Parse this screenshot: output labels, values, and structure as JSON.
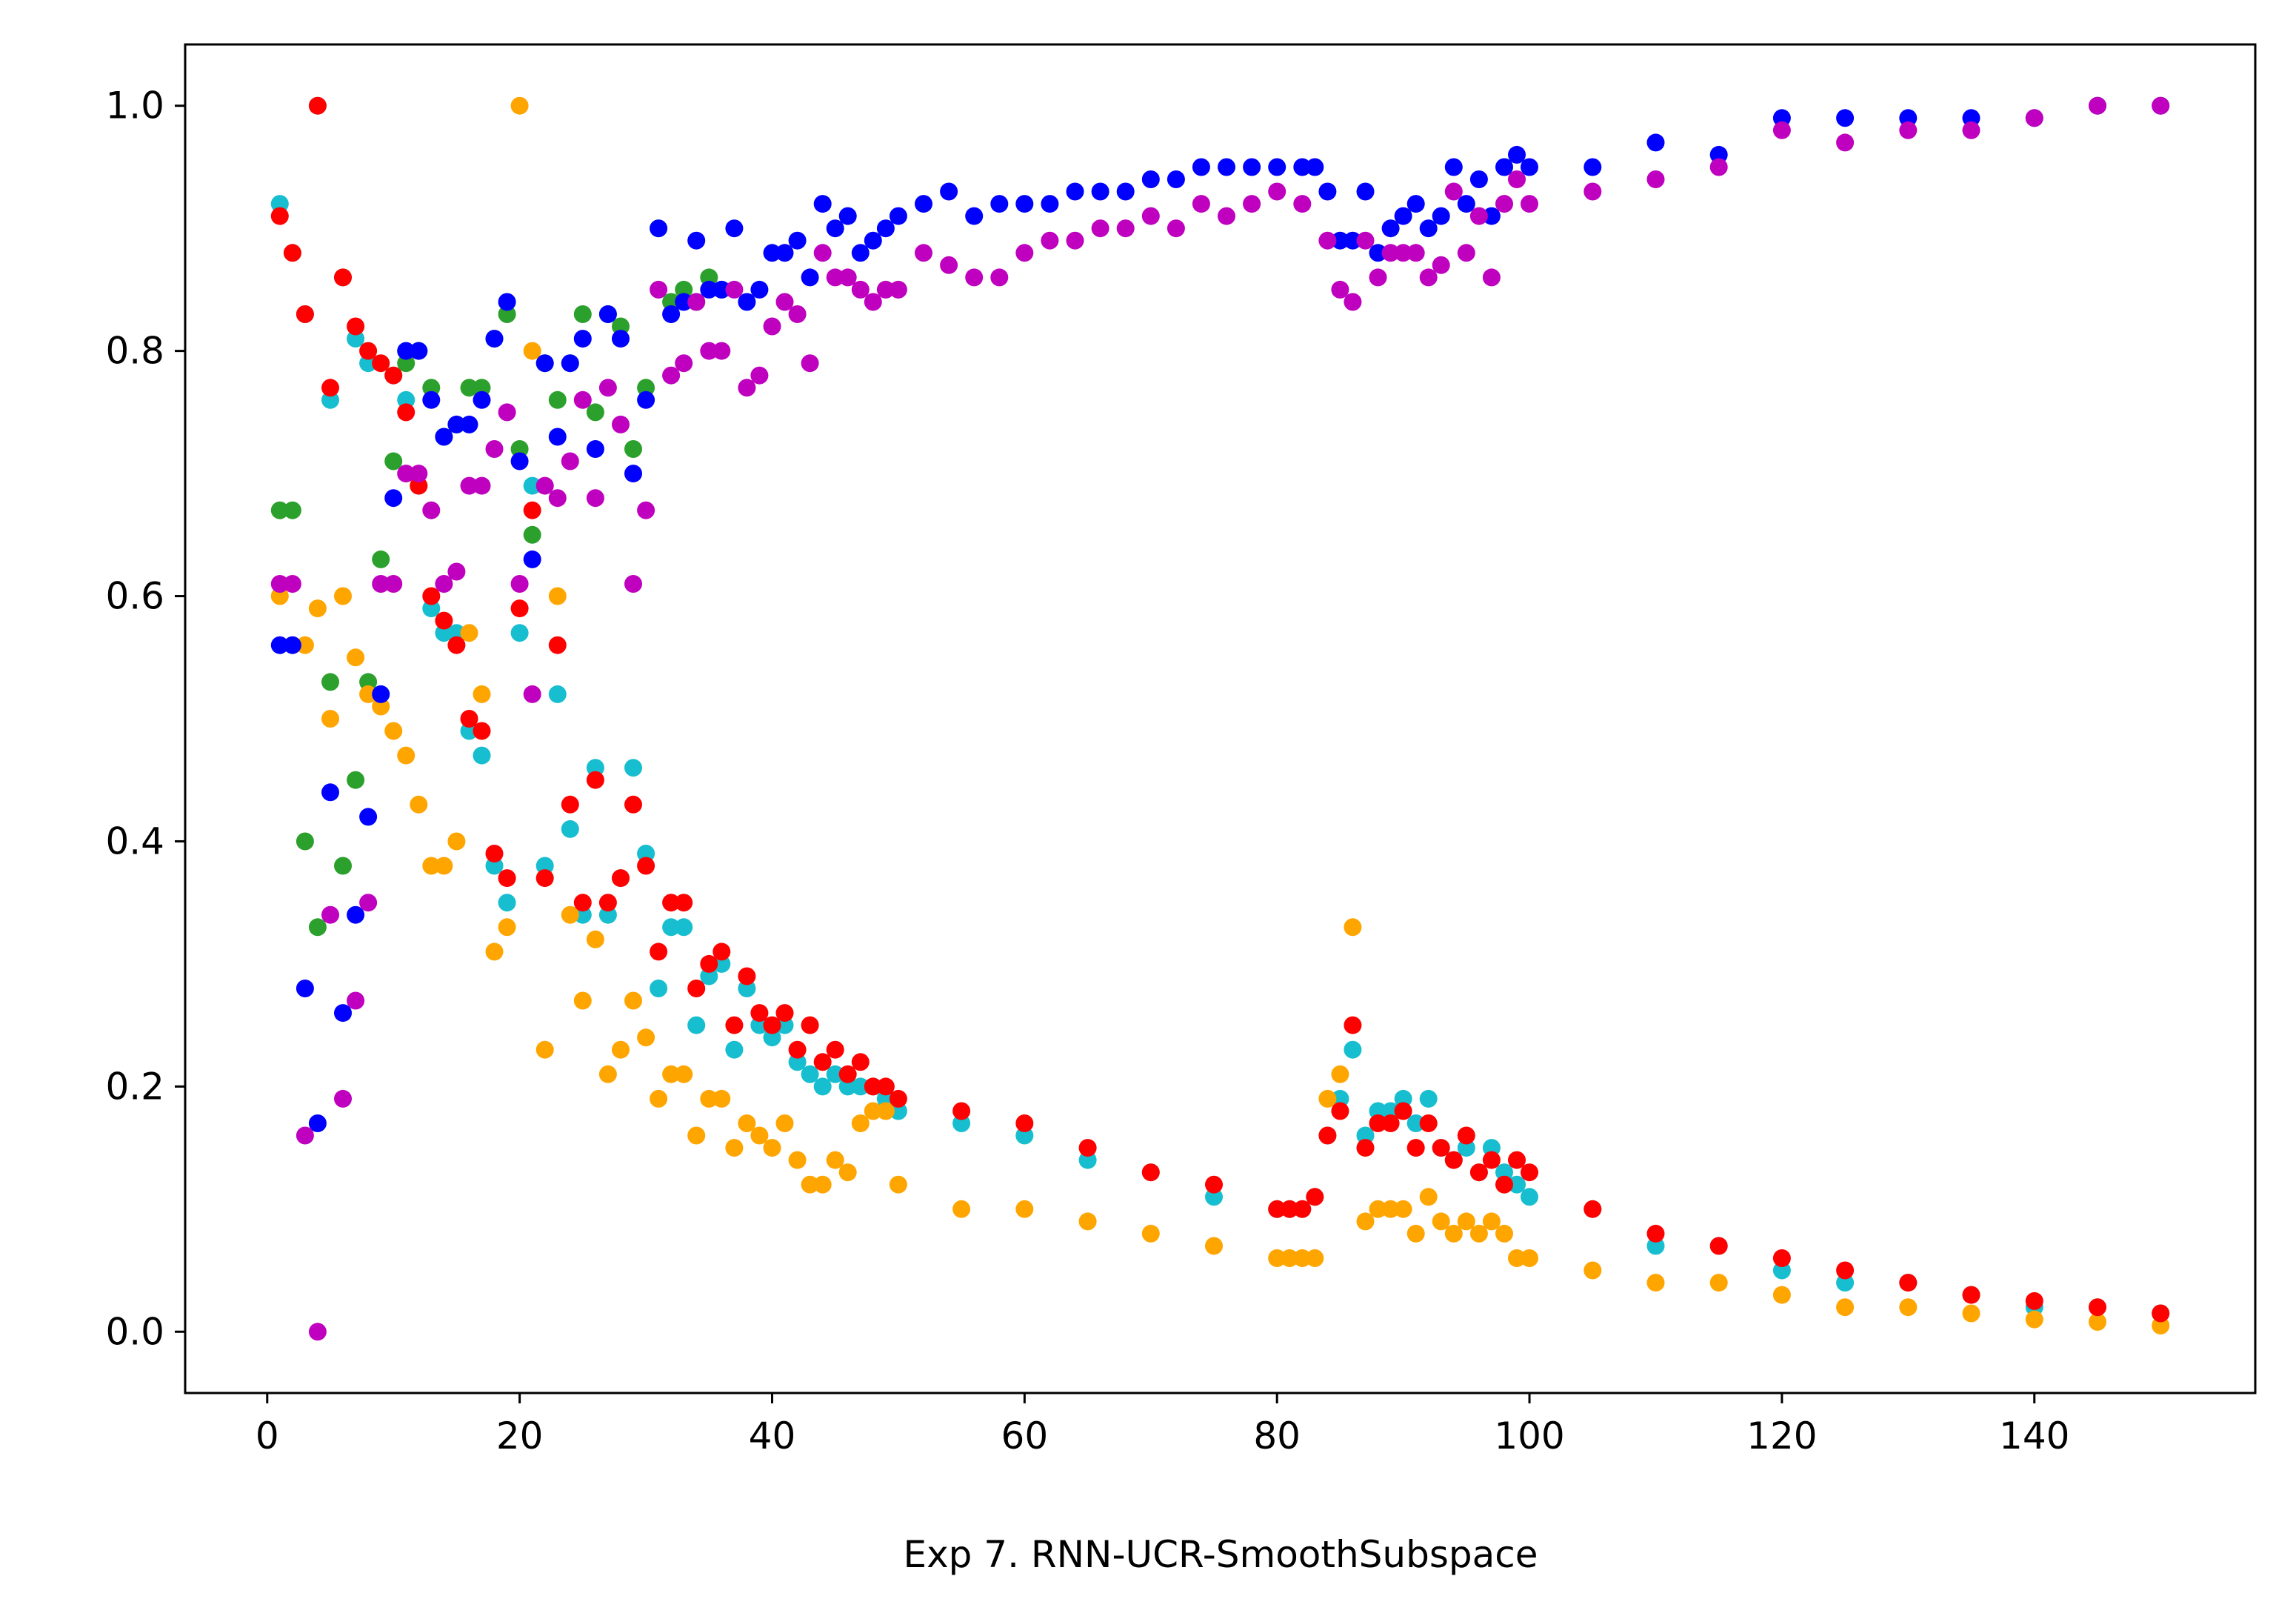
{
  "chart_data": {
    "type": "scatter",
    "title": "",
    "xlabel": "Exp 7. RNN-UCR-SmoothSubspace",
    "ylabel": "",
    "xlim": [
      -6.5,
      157.5
    ],
    "ylim": [
      -0.05,
      1.05
    ],
    "x_ticks": [
      0,
      20,
      40,
      60,
      80,
      100,
      120,
      140
    ],
    "y_ticks": [
      0.0,
      0.2,
      0.4,
      0.6,
      0.8,
      1.0
    ],
    "x_tick_labels": [
      "0",
      "20",
      "40",
      "60",
      "80",
      "100",
      "120",
      "140"
    ],
    "y_tick_labels": [
      "0.0",
      "0.2",
      "0.4",
      "0.6",
      "0.8",
      "1.0"
    ],
    "grid": false,
    "legend": "none",
    "colors": [
      "#17becf",
      "#2ca02c",
      "#ffa500",
      "#0000ff",
      "#ff0000",
      "#bf00bf"
    ],
    "series": [
      {
        "color": "#17becf",
        "x": [
          1,
          2,
          3,
          4,
          5,
          6,
          7,
          8,
          9,
          10,
          11,
          12,
          13,
          14,
          15,
          16,
          17,
          18,
          19,
          20,
          21,
          22,
          23,
          24,
          25,
          26,
          27,
          28,
          29,
          30,
          31,
          32,
          33,
          34,
          35,
          36,
          37,
          38,
          39,
          40,
          41,
          42,
          43,
          44,
          45,
          46,
          47,
          48,
          49,
          50,
          55,
          60,
          65,
          70,
          75,
          80,
          81,
          82,
          83,
          84,
          85,
          86,
          87,
          88,
          89,
          90,
          91,
          92,
          93,
          94,
          95,
          96,
          97,
          98,
          99,
          100,
          105,
          110,
          115,
          120,
          125,
          130,
          135,
          140,
          145,
          150
        ],
        "y": [
          0.92,
          0.88,
          0.83,
          1.0,
          0.76,
          0.86,
          0.81,
          0.79,
          0.52,
          0.78,
          0.76,
          0.69,
          0.59,
          0.57,
          0.57,
          0.49,
          0.47,
          0.38,
          0.35,
          0.57,
          0.69,
          0.38,
          0.52,
          0.41,
          0.34,
          0.46,
          0.34,
          0.37,
          0.46,
          0.39,
          0.28,
          0.33,
          0.33,
          0.25,
          0.29,
          0.3,
          0.23,
          0.28,
          0.25,
          0.24,
          0.25,
          0.22,
          0.21,
          0.2,
          0.21,
          0.2,
          0.2,
          0.2,
          0.19,
          0.18,
          0.17,
          0.16,
          0.14,
          0.13,
          0.11,
          0.1,
          0.1,
          0.1,
          0.11,
          0.16,
          0.19,
          0.23,
          0.16,
          0.18,
          0.18,
          0.19,
          0.17,
          0.19,
          0.15,
          0.14,
          0.15,
          0.13,
          0.15,
          0.13,
          0.12,
          0.11,
          0.1,
          0.07,
          0.07,
          0.05,
          0.04,
          0.04,
          0.03,
          0.02,
          0.02,
          0.015
        ]
      },
      {
        "color": "#2ca02c",
        "x": [
          1,
          2,
          3,
          4,
          5,
          6,
          7,
          8,
          9,
          10,
          11,
          12,
          13,
          14,
          15,
          16,
          17,
          18,
          19,
          20,
          21,
          22,
          23,
          24,
          25,
          26,
          27,
          28,
          29,
          30,
          31,
          32,
          33,
          34,
          35,
          36
        ],
        "y": [
          0.67,
          0.67,
          0.4,
          0.33,
          0.53,
          0.38,
          0.45,
          0.53,
          0.63,
          0.71,
          0.79,
          0.8,
          0.77,
          0.73,
          0.74,
          0.77,
          0.77,
          0.81,
          0.83,
          0.72,
          0.65,
          0.79,
          0.76,
          0.79,
          0.83,
          0.75,
          0.83,
          0.82,
          0.72,
          0.77,
          0.9,
          0.84,
          0.85,
          0.84,
          0.86,
          0.85
        ]
      },
      {
        "color": "#ffa500",
        "x": [
          1,
          2,
          3,
          4,
          5,
          6,
          7,
          8,
          9,
          10,
          11,
          12,
          13,
          14,
          15,
          16,
          17,
          18,
          19,
          20,
          21,
          22,
          23,
          24,
          25,
          26,
          27,
          28,
          29,
          30,
          31,
          32,
          33,
          34,
          35,
          36,
          37,
          38,
          39,
          40,
          41,
          42,
          43,
          44,
          45,
          46,
          47,
          48,
          49,
          50,
          55,
          60,
          65,
          70,
          75,
          80,
          81,
          82,
          83,
          84,
          85,
          86,
          87,
          88,
          89,
          90,
          91,
          92,
          93,
          94,
          95,
          96,
          97,
          98,
          99,
          100,
          105,
          110,
          115,
          120,
          125,
          130,
          135,
          140,
          145,
          150
        ],
        "y": [
          0.6,
          0.56,
          0.56,
          0.59,
          0.5,
          0.6,
          0.55,
          0.52,
          0.51,
          0.49,
          0.47,
          0.43,
          0.38,
          0.38,
          0.4,
          0.57,
          0.52,
          0.31,
          0.33,
          1.0,
          0.8,
          0.23,
          0.6,
          0.34,
          0.27,
          0.32,
          0.21,
          0.23,
          0.27,
          0.24,
          0.19,
          0.21,
          0.21,
          0.16,
          0.19,
          0.19,
          0.15,
          0.17,
          0.16,
          0.15,
          0.17,
          0.14,
          0.12,
          0.12,
          0.14,
          0.13,
          0.17,
          0.18,
          0.18,
          0.12,
          0.1,
          0.1,
          0.09,
          0.08,
          0.07,
          0.06,
          0.06,
          0.06,
          0.06,
          0.19,
          0.21,
          0.33,
          0.09,
          0.1,
          0.1,
          0.1,
          0.08,
          0.11,
          0.09,
          0.08,
          0.09,
          0.08,
          0.09,
          0.08,
          0.06,
          0.06,
          0.05,
          0.04,
          0.04,
          0.03,
          0.02,
          0.02,
          0.015,
          0.01,
          0.008,
          0.005
        ]
      },
      {
        "color": "#0000ff",
        "x": [
          1,
          2,
          3,
          4,
          5,
          6,
          7,
          8,
          9,
          10,
          11,
          12,
          13,
          14,
          15,
          16,
          17,
          18,
          19,
          20,
          21,
          22,
          23,
          24,
          25,
          26,
          27,
          28,
          29,
          30,
          31,
          32,
          33,
          34,
          35,
          36,
          37,
          38,
          39,
          40,
          41,
          42,
          43,
          44,
          45,
          46,
          47,
          48,
          49,
          50,
          52,
          54,
          56,
          58,
          60,
          62,
          64,
          66,
          68,
          70,
          72,
          74,
          76,
          78,
          80,
          82,
          83,
          84,
          85,
          86,
          87,
          88,
          89,
          90,
          91,
          92,
          93,
          94,
          95,
          96,
          97,
          98,
          99,
          100,
          105,
          110,
          115,
          120,
          125,
          130,
          135,
          140,
          145,
          150
        ],
        "y": [
          0.56,
          0.56,
          0.28,
          0.17,
          0.44,
          0.26,
          0.34,
          0.42,
          0.52,
          0.68,
          0.8,
          0.8,
          0.76,
          0.73,
          0.74,
          0.74,
          0.76,
          0.81,
          0.84,
          0.71,
          0.63,
          0.79,
          0.73,
          0.79,
          0.81,
          0.72,
          0.83,
          0.81,
          0.7,
          0.76,
          0.9,
          0.83,
          0.84,
          0.89,
          0.85,
          0.85,
          0.9,
          0.84,
          0.85,
          0.88,
          0.88,
          0.89,
          0.86,
          0.92,
          0.9,
          0.91,
          0.88,
          0.89,
          0.9,
          0.91,
          0.92,
          0.93,
          0.91,
          0.92,
          0.92,
          0.92,
          0.93,
          0.93,
          0.93,
          0.94,
          0.94,
          0.95,
          0.95,
          0.95,
          0.95,
          0.95,
          0.95,
          0.93,
          0.89,
          0.89,
          0.93,
          0.88,
          0.9,
          0.91,
          0.92,
          0.9,
          0.91,
          0.95,
          0.92,
          0.94,
          0.91,
          0.95,
          0.96,
          0.95,
          0.95,
          0.97,
          0.96,
          0.99,
          0.99,
          0.99,
          0.99,
          0.99,
          1.0,
          1.0
        ]
      },
      {
        "color": "#ff0000",
        "x": [
          1,
          2,
          3,
          4,
          5,
          6,
          7,
          8,
          9,
          10,
          11,
          12,
          13,
          14,
          15,
          16,
          17,
          18,
          19,
          20,
          21,
          22,
          23,
          24,
          25,
          26,
          27,
          28,
          29,
          30,
          31,
          32,
          33,
          34,
          35,
          36,
          37,
          38,
          39,
          40,
          41,
          42,
          43,
          44,
          45,
          46,
          47,
          48,
          49,
          50,
          55,
          60,
          65,
          70,
          75,
          80,
          81,
          82,
          83,
          84,
          85,
          86,
          87,
          88,
          89,
          90,
          91,
          92,
          93,
          94,
          95,
          96,
          97,
          98,
          99,
          100,
          105,
          110,
          115,
          120,
          125,
          130,
          135,
          140,
          145,
          150
        ],
        "y": [
          0.91,
          0.88,
          0.83,
          1.0,
          0.77,
          0.86,
          0.82,
          0.8,
          0.79,
          0.78,
          0.75,
          0.69,
          0.6,
          0.58,
          0.56,
          0.5,
          0.49,
          0.39,
          0.37,
          0.59,
          0.67,
          0.37,
          0.56,
          0.43,
          0.35,
          0.45,
          0.35,
          0.37,
          0.43,
          0.38,
          0.31,
          0.35,
          0.35,
          0.28,
          0.3,
          0.31,
          0.25,
          0.29,
          0.26,
          0.25,
          0.26,
          0.23,
          0.25,
          0.22,
          0.23,
          0.21,
          0.22,
          0.2,
          0.2,
          0.19,
          0.18,
          0.17,
          0.15,
          0.13,
          0.12,
          0.1,
          0.1,
          0.1,
          0.11,
          0.16,
          0.18,
          0.25,
          0.15,
          0.17,
          0.17,
          0.18,
          0.15,
          0.17,
          0.15,
          0.14,
          0.16,
          0.13,
          0.14,
          0.12,
          0.14,
          0.13,
          0.1,
          0.08,
          0.07,
          0.06,
          0.05,
          0.04,
          0.03,
          0.025,
          0.02,
          0.015
        ]
      },
      {
        "color": "#bf00bf",
        "x": [
          1,
          2,
          3,
          4,
          5,
          6,
          7,
          8,
          9,
          10,
          11,
          12,
          13,
          14,
          15,
          16,
          17,
          18,
          19,
          20,
          21,
          22,
          23,
          24,
          25,
          26,
          27,
          28,
          29,
          30,
          31,
          32,
          33,
          34,
          35,
          36,
          37,
          38,
          39,
          40,
          41,
          42,
          43,
          44,
          45,
          46,
          47,
          48,
          49,
          50,
          52,
          54,
          56,
          58,
          60,
          62,
          64,
          66,
          68,
          70,
          72,
          74,
          76,
          78,
          80,
          82,
          84,
          85,
          86,
          87,
          88,
          89,
          90,
          91,
          92,
          93,
          94,
          95,
          96,
          97,
          98,
          99,
          100,
          105,
          110,
          115,
          120,
          125,
          130,
          135,
          140,
          145,
          150
        ],
        "y": [
          0.61,
          0.61,
          0.16,
          0.0,
          0.34,
          0.19,
          0.27,
          0.35,
          0.61,
          0.61,
          0.7,
          0.7,
          0.67,
          0.61,
          0.62,
          0.69,
          0.69,
          0.72,
          0.75,
          0.61,
          0.52,
          0.69,
          0.68,
          0.71,
          0.76,
          0.68,
          0.77,
          0.74,
          0.61,
          0.67,
          0.85,
          0.78,
          0.79,
          0.84,
          0.8,
          0.8,
          0.85,
          0.77,
          0.78,
          0.82,
          0.84,
          0.83,
          0.79,
          0.88,
          0.86,
          0.86,
          0.85,
          0.84,
          0.85,
          0.85,
          0.88,
          0.87,
          0.86,
          0.86,
          0.88,
          0.89,
          0.89,
          0.9,
          0.9,
          0.91,
          0.9,
          0.92,
          0.91,
          0.92,
          0.93,
          0.92,
          0.89,
          0.85,
          0.84,
          0.89,
          0.86,
          0.88,
          0.88,
          0.88,
          0.86,
          0.87,
          0.93,
          0.88,
          0.91,
          0.86,
          0.92,
          0.94,
          0.92,
          0.93,
          0.94,
          0.95,
          0.98,
          0.97,
          0.98,
          0.98,
          0.99,
          1.0,
          1.0
        ]
      }
    ]
  }
}
